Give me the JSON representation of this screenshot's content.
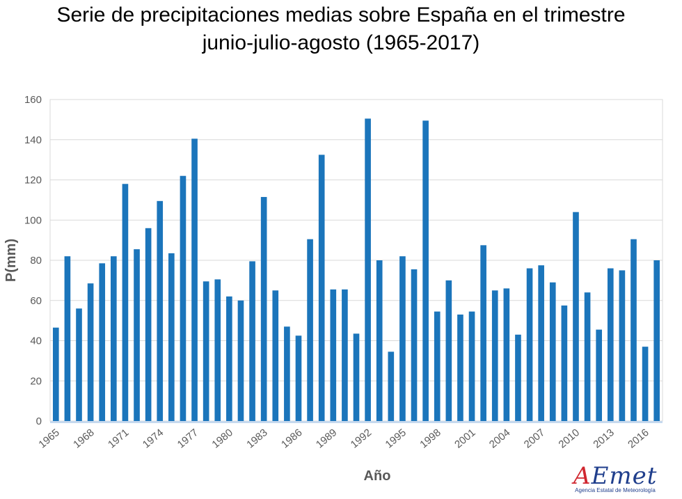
{
  "title_line1": "Serie de precipitaciones medias sobre España en el trimestre",
  "title_line2": "junio-julio-agosto  (1965-2017)",
  "logo": {
    "text_a": "A",
    "text_rest": "Emet",
    "subtitle": "Agencia Estatal de Meteorología"
  },
  "colors": {
    "bar": "#1b75bb",
    "grid": "#d9d9d9",
    "axis_text": "#595959"
  },
  "chart_data": {
    "type": "bar",
    "title": "Serie de precipitaciones medias sobre España en el trimestre junio-julio-agosto (1965-2017)",
    "xlabel": "Año",
    "ylabel": "P(mm)",
    "ylim": [
      0,
      160
    ],
    "yticks": [
      0,
      20,
      40,
      60,
      80,
      100,
      120,
      140,
      160
    ],
    "xtick_labels": [
      "1965",
      "1968",
      "1971",
      "1974",
      "1977",
      "1980",
      "1983",
      "1986",
      "1989",
      "1992",
      "1995",
      "1998",
      "2001",
      "2004",
      "2007",
      "2010",
      "2013",
      "2016"
    ],
    "categories": [
      "1965",
      "1966",
      "1967",
      "1968",
      "1969",
      "1970",
      "1971",
      "1972",
      "1973",
      "1974",
      "1975",
      "1976",
      "1977",
      "1978",
      "1979",
      "1980",
      "1981",
      "1982",
      "1983",
      "1984",
      "1985",
      "1986",
      "1987",
      "1988",
      "1989",
      "1990",
      "1991",
      "1992",
      "1993",
      "1994",
      "1995",
      "1996",
      "1997",
      "1998",
      "1999",
      "2000",
      "2001",
      "2002",
      "2003",
      "2004",
      "2005",
      "2006",
      "2007",
      "2008",
      "2009",
      "2010",
      "2011",
      "2012",
      "2013",
      "2014",
      "2015",
      "2016",
      "2017"
    ],
    "values": [
      46.5,
      82,
      56,
      68.5,
      78.5,
      82,
      118,
      85.5,
      96,
      109.5,
      83.5,
      122,
      140.5,
      69.5,
      70.5,
      62,
      60,
      79.5,
      111.5,
      65,
      47,
      42.5,
      90.5,
      132.5,
      65.5,
      65.5,
      43.5,
      150.5,
      80,
      34.5,
      82,
      75.5,
      149.5,
      54.5,
      70,
      53,
      54.5,
      87.5,
      65,
      66,
      43,
      76,
      77.5,
      69,
      57.5,
      104,
      64,
      45.5,
      76,
      75,
      90.5,
      37,
      80
    ],
    "grid": true
  }
}
